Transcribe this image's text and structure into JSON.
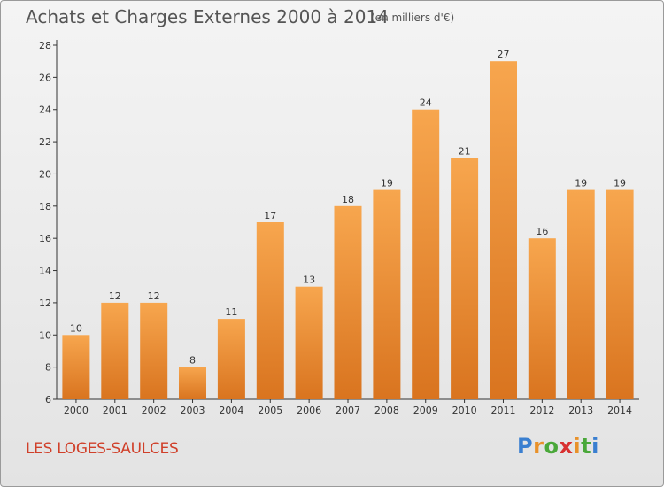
{
  "title": "Achats et Charges Externes 2000 à 2014",
  "subtitle": "(en milliers d'€)",
  "commune": "LES LOGES-SAULCES",
  "logo": {
    "letters": [
      "P",
      "r",
      "o",
      "x",
      "i",
      "t",
      "i"
    ],
    "colors": [
      "#3a7fd0",
      "#e8912a",
      "#4aa83a",
      "#d83030",
      "#e8912a",
      "#4aa83a",
      "#3a7fd0"
    ]
  },
  "colors": {
    "bar_light": "#f7a64e",
    "bar_dark": "#d9741f",
    "title": "#555555",
    "commune": "#d0402a"
  },
  "chart_data": {
    "type": "bar",
    "title": "Achats et Charges Externes 2000 à 2014",
    "categories": [
      "2000",
      "2001",
      "2002",
      "2003",
      "2004",
      "2005",
      "2006",
      "2007",
      "2008",
      "2009",
      "2010",
      "2011",
      "2012",
      "2013",
      "2014"
    ],
    "values": [
      10,
      12,
      12,
      8,
      11,
      17,
      13,
      18,
      19,
      24,
      21,
      27,
      16,
      19,
      19
    ],
    "ylim": [
      6,
      28
    ],
    "yticks": [
      6,
      8,
      10,
      12,
      14,
      16,
      18,
      20,
      22,
      24,
      26,
      28
    ],
    "grid": false,
    "xlabel": "",
    "ylabel": ""
  }
}
